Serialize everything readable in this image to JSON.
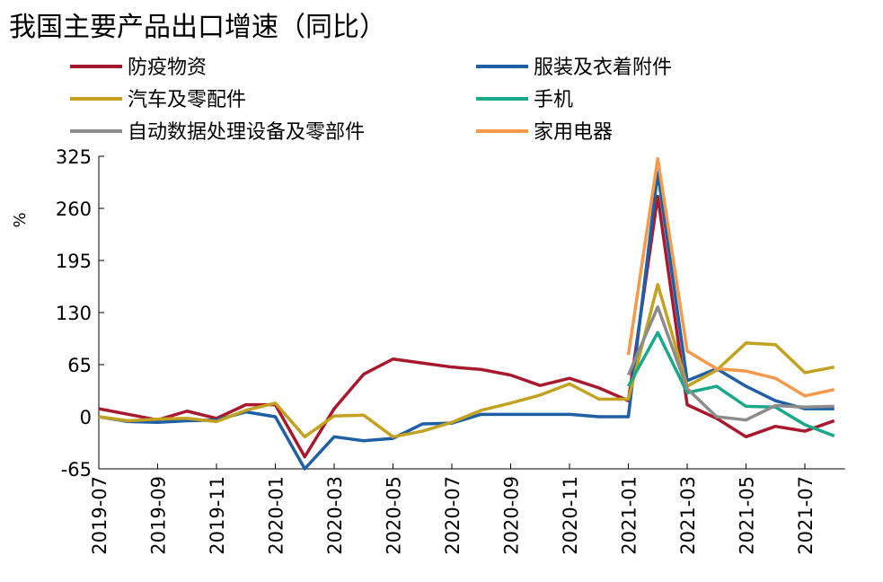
{
  "chart_data": {
    "type": "line",
    "title": "我国主要产品出口增速（同比）",
    "ylabel": "%",
    "categories": [
      "2019-07",
      null,
      "2019-09",
      null,
      "2019-11",
      null,
      "2020-01",
      null,
      "2020-03",
      null,
      "2020-05",
      null,
      "2020-07",
      null,
      "2020-09",
      null,
      "2020-11",
      null,
      "2021-01",
      null,
      "2021-03",
      null,
      "2021-05",
      null,
      "2021-07",
      null
    ],
    "series": [
      {
        "name": "防疫物资",
        "color": "#a8192e",
        "values": [
          10,
          3,
          -4,
          7,
          -2,
          15,
          15,
          -50,
          10,
          53,
          72,
          67,
          62,
          59,
          52,
          39,
          48,
          36,
          20,
          275,
          15,
          -2,
          -25,
          -12,
          -18,
          -5
        ]
      },
      {
        "name": "服装及衣着附件",
        "color": "#1f5fa6",
        "values": [
          0,
          -6,
          -7,
          -5,
          -4,
          6,
          0,
          -65,
          -25,
          -30,
          -27,
          -9,
          -8,
          3,
          3,
          3,
          3,
          0,
          0,
          305,
          45,
          60,
          38,
          20,
          10,
          10
        ]
      },
      {
        "name": "汽车及零配件",
        "color": "#c2a21e",
        "values": [
          0,
          -5,
          -3,
          -2,
          -6,
          8,
          17,
          -25,
          1,
          2,
          -25,
          -18,
          -7,
          8,
          17,
          27,
          41,
          22,
          22,
          165,
          38,
          58,
          92,
          90,
          55,
          62
        ]
      },
      {
        "name": "手机",
        "color": "#1aa88a",
        "values": [
          null,
          null,
          null,
          null,
          null,
          null,
          null,
          null,
          null,
          null,
          null,
          null,
          null,
          null,
          null,
          null,
          null,
          null,
          38,
          105,
          30,
          38,
          13,
          12,
          -10,
          -24
        ]
      },
      {
        "name": "自动数据处理设备及零部件",
        "color": "#8c8c8c",
        "values": [
          null,
          null,
          null,
          null,
          null,
          null,
          null,
          null,
          null,
          null,
          null,
          null,
          null,
          null,
          null,
          null,
          null,
          null,
          52,
          137,
          35,
          0,
          -4,
          14,
          12,
          13
        ]
      },
      {
        "name": "家用电器",
        "color": "#f5994a",
        "values": [
          null,
          null,
          null,
          null,
          null,
          null,
          null,
          null,
          null,
          null,
          null,
          null,
          null,
          null,
          null,
          null,
          null,
          null,
          77,
          322,
          82,
          60,
          57,
          48,
          26,
          34
        ]
      }
    ],
    "ylim": [
      -65,
      325
    ],
    "yticks": [
      -65,
      0,
      65,
      130,
      195,
      260,
      325
    ]
  }
}
